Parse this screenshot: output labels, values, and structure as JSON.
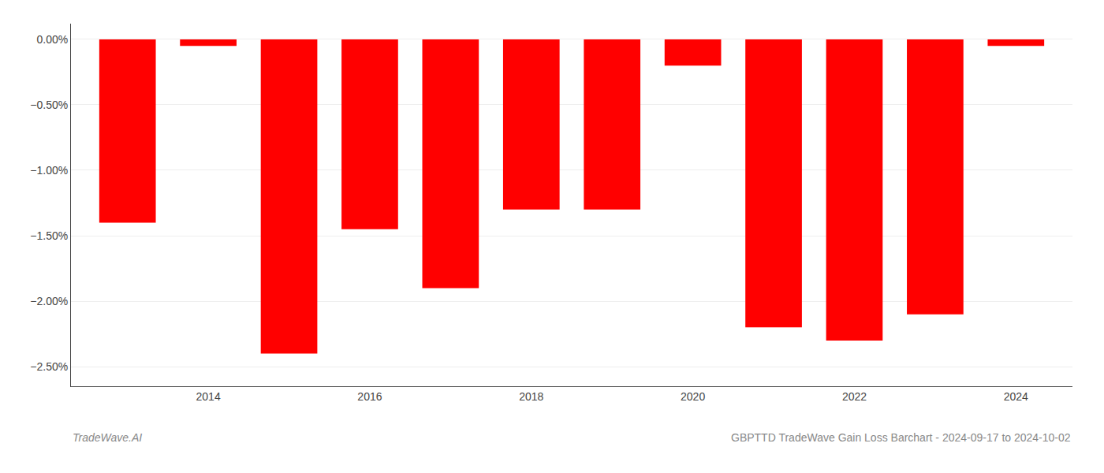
{
  "chart_data": {
    "type": "bar",
    "title": "GBPTTD TradeWave Gain Loss Barchart - 2024-09-17 to 2024-10-02",
    "annotations": [
      "TradeWave.AI"
    ],
    "x": [
      2013,
      2014,
      2015,
      2016,
      2017,
      2018,
      2019,
      2020,
      2021,
      2022,
      2023,
      2024
    ],
    "values": [
      -1.4,
      -0.05,
      -2.4,
      -1.45,
      -1.9,
      -1.3,
      -1.3,
      -0.2,
      -2.2,
      -2.3,
      -2.1,
      -0.05
    ],
    "color": "#ff0000",
    "xlim": [
      2012.3,
      2024.7
    ],
    "xticks": [
      2014,
      2016,
      2018,
      2020,
      2022,
      2024
    ],
    "ylim": [
      -2.65,
      0.12
    ],
    "yticks": [
      {
        "value": 0.0,
        "label": "0.00%"
      },
      {
        "value": -0.5,
        "label": "−0.50%"
      },
      {
        "value": -1.0,
        "label": "−1.00%"
      },
      {
        "value": -1.5,
        "label": "−1.50%"
      },
      {
        "value": -2.0,
        "label": "−2.00%"
      },
      {
        "value": -2.5,
        "label": "−2.50%"
      }
    ],
    "grid": true
  }
}
